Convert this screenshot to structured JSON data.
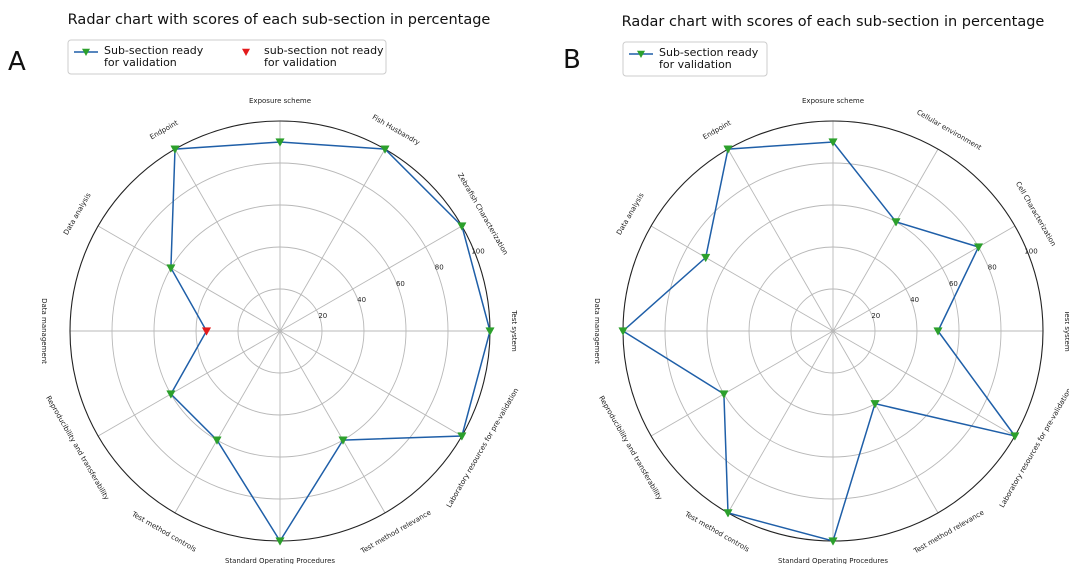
{
  "chart_data": [
    {
      "type": "radar",
      "panel_letter": "A",
      "title": "Radar chart with scores of each sub-section in percentage",
      "categories": [
        "Test system",
        "Zebrafish Characterization",
        "Fish Husbandry",
        "Exposure scheme",
        "Endpoint",
        "Data analysis",
        "Data management",
        "Reproducibility and transferability",
        "Test method controls",
        "Standard Operating Procedures",
        "Test method relevance",
        "Laboratory resources for pre-validation"
      ],
      "values": [
        100,
        100,
        100,
        90,
        100,
        60,
        35,
        60,
        60,
        100,
        60,
        100
      ],
      "status": [
        "ready",
        "ready",
        "ready",
        "ready",
        "ready",
        "ready",
        "not_ready",
        "ready",
        "ready",
        "ready",
        "ready",
        "ready"
      ],
      "radial_ticks": [
        "20",
        "40",
        "60",
        "80",
        "100"
      ],
      "rlim": [
        0,
        100
      ],
      "grid": true,
      "legend": [
        {
          "label": "Sub-section ready for validation",
          "lines": [
            "Sub-section ready",
            "for validation"
          ],
          "marker": "green-triangle-down",
          "line_color": "#1f5fa8",
          "marker_color": "#2ca02c"
        },
        {
          "label": "sub-section not ready for validation",
          "lines": [
            "sub-section not ready",
            "for validation"
          ],
          "marker": "red-triangle-down",
          "marker_color": "#e31a1c"
        }
      ],
      "legend_position": "top-left"
    },
    {
      "type": "radar",
      "panel_letter": "B",
      "title": "Radar chart with scores of each sub-section in percentage",
      "categories": [
        "Test system",
        "Cell Characterization",
        "Cellular environment",
        "Exposure scheme",
        "Endpoint",
        "Data analysis",
        "Data management",
        "Reproducibility and transferability",
        "Test method controls",
        "Standard Operating Procedures",
        "Test method relevance",
        "Laboratory resources for pre-validation"
      ],
      "values": [
        50,
        80,
        60,
        90,
        100,
        70,
        100,
        60,
        100,
        100,
        40,
        100
      ],
      "status": [
        "ready",
        "ready",
        "ready",
        "ready",
        "ready",
        "ready",
        "ready",
        "ready",
        "ready",
        "ready",
        "ready",
        "ready"
      ],
      "radial_ticks": [
        "20",
        "40",
        "60",
        "80",
        "100"
      ],
      "rlim": [
        0,
        100
      ],
      "grid": true,
      "legend": [
        {
          "label": "Sub-section ready for validation",
          "lines": [
            "Sub-section ready",
            "for validation"
          ],
          "marker": "green-triangle-down",
          "line_color": "#1f5fa8",
          "marker_color": "#2ca02c"
        }
      ],
      "legend_position": "top-left"
    }
  ],
  "colors": {
    "line": "#1f5fa8",
    "ready_marker": "#2ca02c",
    "not_ready_marker": "#e31a1c",
    "grid": "#b8b8b8",
    "frame": "#222222"
  }
}
